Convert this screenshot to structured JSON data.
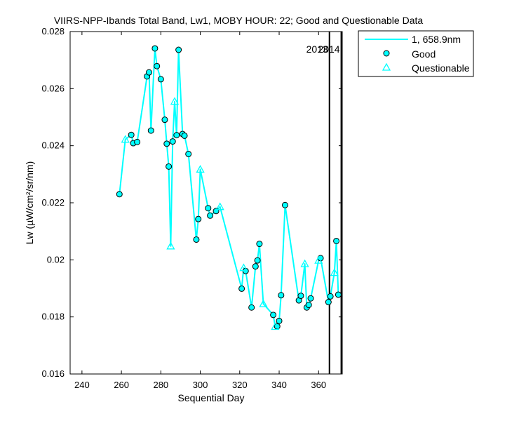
{
  "chart_data": {
    "type": "line",
    "title": "VIIRS-NPP-Ibands Total Band,  Lw1, MOBY HOUR: 22;  Good and Questionable Data",
    "xlabel": "Sequential Day",
    "ylabel": "Lw (µW/cm²/sr/nm)",
    "xlim": [
      234,
      372
    ],
    "ylim": [
      0.016,
      0.028
    ],
    "x_ticks": [
      240,
      260,
      280,
      300,
      320,
      340,
      360
    ],
    "y_ticks": [
      0.016,
      0.018,
      0.02,
      0.022,
      0.024,
      0.026,
      0.028
    ],
    "x_tick_labels": [
      "240",
      "260",
      "280",
      "300",
      "320",
      "340",
      "360"
    ],
    "y_tick_labels": [
      "0.016",
      "0.018",
      "0.02",
      "0.022",
      "0.024",
      "0.026",
      "0.028"
    ],
    "grid": false,
    "legend_position": "top-right, outside plot",
    "line_color": "#00ffff",
    "line_series": {
      "name": "1, 658.9nm",
      "x": [
        259,
        262,
        265,
        266,
        268,
        273,
        274,
        275,
        276,
        277,
        278,
        280,
        282,
        283,
        284,
        285,
        286,
        287,
        288,
        289,
        291,
        292,
        294,
        298,
        299,
        300,
        304,
        305,
        308,
        310,
        321,
        322,
        323,
        326,
        328,
        329,
        330,
        332,
        337,
        338,
        339,
        340,
        341,
        343,
        350,
        351,
        353,
        354,
        355,
        356,
        360,
        361,
        365,
        366,
        368,
        369,
        370
      ],
      "y": [
        0.0223,
        0.02422,
        0.02438,
        0.02409,
        0.02413,
        0.02643,
        0.02657,
        0.02453,
        0.02602,
        0.02741,
        0.02679,
        0.02633,
        0.02491,
        0.02407,
        0.02327,
        0.02048,
        0.02415,
        0.02555,
        0.02437,
        0.02736,
        0.02441,
        0.02435,
        0.02371,
        0.02071,
        0.02143,
        0.02317,
        0.02181,
        0.02155,
        0.02171,
        0.02186,
        0.01899,
        0.01972,
        0.01961,
        0.01833,
        0.01977,
        0.01998,
        0.02056,
        0.01846,
        0.01807,
        0.01766,
        0.01767,
        0.01786,
        0.01876,
        0.02192,
        0.01858,
        0.01874,
        0.01986,
        0.01833,
        0.01842,
        0.01865,
        0.01998,
        0.02006,
        0.01852,
        0.01872,
        0.01955,
        0.02066,
        0.01878
      ]
    },
    "good": {
      "name": "Good",
      "x": [
        259,
        265,
        266,
        268,
        273,
        274,
        275,
        277,
        278,
        280,
        282,
        283,
        284,
        286,
        288,
        289,
        291,
        292,
        294,
        298,
        299,
        304,
        305,
        308,
        321,
        323,
        326,
        328,
        329,
        330,
        337,
        339,
        340,
        341,
        343,
        350,
        351,
        354,
        355,
        356,
        361,
        365,
        366,
        369,
        370
      ],
      "y": [
        0.0223,
        0.02438,
        0.02409,
        0.02413,
        0.02643,
        0.02657,
        0.02453,
        0.02741,
        0.02679,
        0.02633,
        0.02491,
        0.02407,
        0.02327,
        0.02415,
        0.02437,
        0.02736,
        0.02441,
        0.02435,
        0.02371,
        0.02071,
        0.02143,
        0.02181,
        0.02155,
        0.02171,
        0.01899,
        0.01961,
        0.01833,
        0.01977,
        0.01998,
        0.02056,
        0.01807,
        0.01767,
        0.01786,
        0.01876,
        0.02192,
        0.01858,
        0.01874,
        0.01833,
        0.01842,
        0.01865,
        0.02006,
        0.01852,
        0.01872,
        0.02066,
        0.01878
      ]
    },
    "questionable": {
      "name": "Questionable",
      "x": [
        262,
        285,
        287,
        300,
        310,
        322,
        332,
        338,
        353,
        360,
        368
      ],
      "y": [
        0.02422,
        0.02048,
        0.02555,
        0.02317,
        0.02186,
        0.01972,
        0.01846,
        0.01766,
        0.01986,
        0.01998,
        0.01955
      ]
    },
    "year_markers": [
      {
        "x": 365.5,
        "label": "2013"
      },
      {
        "x": 371.5,
        "label": "2014"
      }
    ]
  }
}
